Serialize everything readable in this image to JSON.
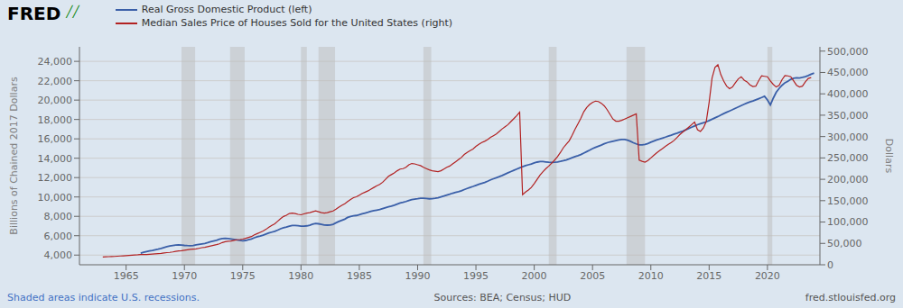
{
  "chart_data": {
    "type": "line",
    "annotations": [
      "FRED",
      "╱╱",
      "Shaded areas indicate U.S. recessions.",
      "Sources: BEA; Census; HUD",
      "fred.stlouisfed.org"
    ],
    "ylabel": "Billions of Chained 2017 Dollars",
    "y2label": "Dollars",
    "xlim": [
      1961,
      2024.5
    ],
    "xticks": [
      1965,
      1970,
      1975,
      1980,
      1985,
      1990,
      1995,
      2000,
      2005,
      2010,
      2015,
      2020
    ],
    "ylim": [
      3000,
      25500
    ],
    "yticks": [
      {
        "value": 4000,
        "label": "4,000"
      },
      {
        "value": 6000,
        "label": "6,000"
      },
      {
        "value": 8000,
        "label": "8,000"
      },
      {
        "value": 10000,
        "label": "10,000"
      },
      {
        "value": 12000,
        "label": "12,000"
      },
      {
        "value": 14000,
        "label": "14,000"
      },
      {
        "value": 16000,
        "label": "16,000"
      },
      {
        "value": 18000,
        "label": "18,000"
      },
      {
        "value": 20000,
        "label": "20,000"
      },
      {
        "value": 22000,
        "label": "22,000"
      },
      {
        "value": 24000,
        "label": "24,000"
      }
    ],
    "y2lim": [
      0,
      510000
    ],
    "y2ticks": [
      0,
      {
        "value": 50000,
        "label": "50,000"
      },
      {
        "value": 100000,
        "label": "100,000"
      },
      {
        "value": 150000,
        "label": "150,000"
      },
      {
        "value": 200000,
        "label": "200,000"
      },
      {
        "value": 250000,
        "label": "250,000"
      },
      {
        "value": 300000,
        "label": "300,000"
      },
      {
        "value": 350000,
        "label": "350,000"
      },
      {
        "value": 400000,
        "label": "400,000"
      },
      {
        "value": 450000,
        "label": "450,000"
      },
      {
        "value": 500000,
        "label": "500,000"
      }
    ],
    "grid": true,
    "legend": "upper left",
    "recessions": [
      [
        1969.75,
        1970.917
      ],
      [
        1973.917,
        1975.167
      ],
      [
        1980.0,
        1980.5
      ],
      [
        1981.5,
        1982.917
      ],
      [
        1990.5,
        1991.167
      ],
      [
        2001.25,
        2001.917
      ],
      [
        2007.917,
        2009.5
      ],
      [
        2020.0,
        2020.417
      ]
    ],
    "series": [
      {
        "name": "Real Gross Domestic Product (left)",
        "color": "#3a5fa8",
        "axis": "y",
        "x": [
          1966.25,
          1966.5,
          1966.75,
          1967.0,
          1967.25,
          1967.5,
          1967.75,
          1968.0,
          1968.25,
          1968.5,
          1968.75,
          1969.0,
          1969.25,
          1969.5,
          1969.75,
          1970.0,
          1970.25,
          1970.5,
          1970.75,
          1971.0,
          1971.25,
          1971.5,
          1971.75,
          1972.0,
          1972.25,
          1972.5,
          1972.75,
          1973.0,
          1973.25,
          1973.5,
          1973.75,
          1974.0,
          1974.25,
          1974.5,
          1974.75,
          1975.0,
          1975.25,
          1975.5,
          1975.75,
          1976.0,
          1976.25,
          1976.5,
          1976.75,
          1977.0,
          1977.25,
          1977.5,
          1977.75,
          1978.0,
          1978.25,
          1978.5,
          1978.75,
          1979.0,
          1979.25,
          1979.5,
          1979.75,
          1980.0,
          1980.25,
          1980.5,
          1980.75,
          1981.0,
          1981.25,
          1981.5,
          1981.75,
          1982.0,
          1982.25,
          1982.5,
          1982.75,
          1983.0,
          1983.25,
          1983.5,
          1983.75,
          1984.0,
          1984.25,
          1984.5,
          1984.75,
          1985.0,
          1985.25,
          1985.5,
          1985.75,
          1986.0,
          1986.25,
          1986.5,
          1986.75,
          1987.0,
          1987.25,
          1987.5,
          1987.75,
          1988.0,
          1988.25,
          1988.5,
          1988.75,
          1989.0,
          1989.25,
          1989.5,
          1989.75,
          1990.0,
          1990.25,
          1990.5,
          1990.75,
          1991.0,
          1991.25,
          1991.5,
          1991.75,
          1992.0,
          1992.25,
          1992.5,
          1992.75,
          1993.0,
          1993.25,
          1993.5,
          1993.75,
          1994.0,
          1994.25,
          1994.5,
          1994.75,
          1995.0,
          1995.25,
          1995.5,
          1995.75,
          1996.0,
          1996.25,
          1996.5,
          1996.75,
          1997.0,
          1997.25,
          1997.5,
          1997.75,
          1998.0,
          1998.25,
          1998.5,
          1998.75,
          1999.0,
          1999.25,
          1999.5,
          1999.75,
          2000.0,
          2000.25,
          2000.5,
          2000.75,
          2001.0,
          2001.25,
          2001.5,
          2001.75,
          2002.0,
          2002.25,
          2002.5,
          2002.75,
          2003.0,
          2003.25,
          2003.5,
          2003.75,
          2004.0,
          2004.25,
          2004.5,
          2004.75,
          2005.0,
          2005.25,
          2005.5,
          2005.75,
          2006.0,
          2006.25,
          2006.5,
          2006.75,
          2007.0,
          2007.25,
          2007.5,
          2007.75,
          2008.0,
          2008.25,
          2008.5,
          2008.75,
          2009.0,
          2009.25,
          2009.5,
          2009.75,
          2010.0,
          2010.25,
          2010.5,
          2010.75,
          2011.0,
          2011.25,
          2011.5,
          2011.75,
          2012.0,
          2012.25,
          2012.5,
          2012.75,
          2013.0,
          2013.25,
          2013.5,
          2013.75,
          2014.0,
          2014.25,
          2014.5,
          2014.75,
          2015.0,
          2015.25,
          2015.5,
          2015.75,
          2016.0,
          2016.25,
          2016.5,
          2016.75,
          2017.0,
          2017.25,
          2017.5,
          2017.75,
          2018.0,
          2018.25,
          2018.5,
          2018.75,
          2019.0,
          2019.25,
          2019.5,
          2019.75,
          2020.0,
          2020.25,
          2020.5,
          2020.75,
          2021.0,
          2021.25,
          2021.5,
          2021.75,
          2022.0,
          2022.25,
          2022.5,
          2022.75,
          2023.0,
          2023.25,
          2023.5,
          2023.75,
          2024.0
        ],
        "values": [
          4200,
          4290,
          4360,
          4420,
          4480,
          4550,
          4610,
          4690,
          4780,
          4860,
          4930,
          4990,
          5030,
          5060,
          5040,
          5000,
          4980,
          4970,
          4990,
          5050,
          5100,
          5150,
          5190,
          5280,
          5380,
          5450,
          5520,
          5630,
          5700,
          5720,
          5700,
          5660,
          5620,
          5570,
          5530,
          5480,
          5510,
          5590,
          5670,
          5790,
          5890,
          5970,
          6060,
          6180,
          6280,
          6370,
          6460,
          6580,
          6720,
          6820,
          6890,
          6980,
          7050,
          7060,
          7040,
          6980,
          6980,
          7020,
          7090,
          7190,
          7270,
          7230,
          7180,
          7100,
          7090,
          7110,
          7180,
          7330,
          7470,
          7590,
          7710,
          7890,
          7990,
          8050,
          8090,
          8170,
          8260,
          8340,
          8420,
          8510,
          8580,
          8640,
          8700,
          8800,
          8890,
          8980,
          9050,
          9150,
          9270,
          9370,
          9440,
          9530,
          9640,
          9720,
          9780,
          9820,
          9870,
          9870,
          9840,
          9810,
          9820,
          9860,
          9920,
          10010,
          10100,
          10200,
          10290,
          10390,
          10470,
          10550,
          10640,
          10760,
          10880,
          10990,
          11090,
          11200,
          11310,
          11400,
          11490,
          11620,
          11760,
          11880,
          11990,
          12100,
          12220,
          12360,
          12490,
          12620,
          12750,
          12880,
          13000,
          13130,
          13230,
          13320,
          13410,
          13510,
          13600,
          13650,
          13650,
          13620,
          13590,
          13570,
          13580,
          13620,
          13680,
          13750,
          13830,
          13930,
          14050,
          14160,
          14260,
          14380,
          14530,
          14680,
          14830,
          14990,
          15120,
          15240,
          15360,
          15490,
          15600,
          15690,
          15760,
          15830,
          15890,
          15930,
          15940,
          15870,
          15750,
          15600,
          15480,
          15380,
          15370,
          15420,
          15520,
          15660,
          15780,
          15890,
          15980,
          16080,
          16180,
          16290,
          16380,
          16490,
          16590,
          16700,
          16800,
          16940,
          17070,
          17200,
          17330,
          17460,
          17560,
          17660,
          17760,
          17890,
          18030,
          18170,
          18300,
          18460,
          18610,
          18750,
          18880,
          19010,
          19150,
          19290,
          19430,
          19570,
          19700,
          19820,
          19910,
          20030,
          20150,
          20270,
          20400,
          20010,
          19500,
          20200,
          20800,
          21200,
          21530,
          21790,
          21950,
          22150,
          22260,
          22300,
          22280,
          22340,
          22420,
          22540,
          22680,
          22800
        ]
      },
      {
        "name": "Median Sales Price of Houses Sold for the United States (right)",
        "color": "#b22222",
        "axis": "y2",
        "x": [
          1963.0,
          1963.25,
          1963.5,
          1963.75,
          1964.0,
          1964.25,
          1964.5,
          1964.75,
          1965.0,
          1965.25,
          1965.5,
          1965.75,
          1966.0,
          1966.25,
          1966.5,
          1966.75,
          1967.0,
          1967.25,
          1967.5,
          1967.75,
          1968.0,
          1968.25,
          1968.5,
          1968.75,
          1969.0,
          1969.25,
          1969.5,
          1969.75,
          1970.0,
          1970.25,
          1970.5,
          1970.75,
          1971.0,
          1971.25,
          1971.5,
          1971.75,
          1972.0,
          1972.25,
          1972.5,
          1972.75,
          1973.0,
          1973.25,
          1973.5,
          1973.75,
          1974.0,
          1974.25,
          1974.5,
          1974.75,
          1975.0,
          1975.25,
          1975.5,
          1975.75,
          1976.0,
          1976.25,
          1976.5,
          1976.75,
          1977.0,
          1977.25,
          1977.5,
          1977.75,
          1978.0,
          1978.25,
          1978.5,
          1978.75,
          1979.0,
          1979.25,
          1979.5,
          1979.75,
          1980.0,
          1980.25,
          1980.5,
          1980.75,
          1981.0,
          1981.25,
          1981.5,
          1981.75,
          1982.0,
          1982.25,
          1982.5,
          1982.75,
          1983.0,
          1983.25,
          1983.5,
          1983.75,
          1984.0,
          1984.25,
          1984.5,
          1984.75,
          1985.0,
          1985.25,
          1985.5,
          1985.75,
          1986.0,
          1986.25,
          1986.5,
          1986.75,
          1987.0,
          1987.25,
          1987.5,
          1987.75,
          1988.0,
          1988.25,
          1988.5,
          1988.75,
          1989.0,
          1989.25,
          1989.5,
          1989.75,
          1990.0,
          1990.25,
          1990.5,
          1990.75,
          1991.0,
          1991.25,
          1991.5,
          1991.75,
          1992.0,
          1992.25,
          1992.5,
          1992.75,
          1993.0,
          1993.25,
          1993.5,
          1993.75,
          1994.0,
          1994.25,
          1994.5,
          1994.75,
          1995.0,
          1995.25,
          1995.5,
          1995.75,
          1996.0,
          1996.25,
          1996.5,
          1996.75,
          1997.0,
          1997.25,
          1997.5,
          1997.75,
          1998.0,
          1998.25,
          1998.5,
          1998.75,
          1999.0,
          1999.25,
          1999.5,
          1999.75,
          2000.0,
          2000.25,
          2000.5,
          2000.75,
          2001.0,
          2001.25,
          2001.5,
          2001.75,
          2002.0,
          2002.25,
          2002.5,
          2002.75,
          2003.0,
          2003.25,
          2003.5,
          2003.75,
          2004.0,
          2004.25,
          2004.5,
          2004.75,
          2005.0,
          2005.25,
          2005.5,
          2005.75,
          2006.0,
          2006.25,
          2006.5,
          2006.75,
          2007.0,
          2007.25,
          2007.5,
          2007.75,
          2008.0,
          2008.25,
          2008.5,
          2008.75,
          2009.0,
          2009.25,
          2009.5,
          2009.75,
          2010.0,
          2010.25,
          2010.5,
          2010.75,
          2011.0,
          2011.25,
          2011.5,
          2011.75,
          2012.0,
          2012.25,
          2012.5,
          2012.75,
          2013.0,
          2013.25,
          2013.5,
          2013.75,
          2014.0,
          2014.25,
          2014.5,
          2014.75,
          2015.0,
          2015.25,
          2015.5,
          2015.75,
          2016.0,
          2016.25,
          2016.5,
          2016.75,
          2017.0,
          2017.25,
          2017.5,
          2017.75,
          2018.0,
          2018.25,
          2018.5,
          2018.75,
          2019.0,
          2019.25,
          2019.5,
          2019.75,
          2020.0,
          2020.25,
          2020.5,
          2020.75,
          2021.0,
          2021.25,
          2021.5,
          2021.75,
          2022.0,
          2022.25,
          2022.5,
          2022.75,
          2023.0,
          2023.25,
          2023.5,
          2023.75
        ],
        "values": [
          18000,
          18500,
          19000,
          19200,
          19500,
          20000,
          20500,
          21000,
          21500,
          22000,
          22500,
          23000,
          23300,
          23800,
          24000,
          24100,
          24500,
          25000,
          25500,
          26000,
          26500,
          27500,
          28500,
          29000,
          30000,
          31500,
          32500,
          33000,
          34000,
          35000,
          36000,
          36500,
          37000,
          38500,
          40000,
          41000,
          42500,
          44000,
          45500,
          47000,
          49000,
          52000,
          54000,
          55000,
          55500,
          57000,
          58500,
          59000,
          60000,
          62000,
          64000,
          66000,
          70000,
          73000,
          76000,
          79000,
          83000,
          88000,
          92000,
          96000,
          102000,
          108000,
          113000,
          116000,
          120000,
          121000,
          120000,
          118000,
          117000,
          119000,
          121000,
          122000,
          124000,
          126000,
          124000,
          122000,
          121000,
          122000,
          124000,
          126000,
          130000,
          135000,
          139000,
          143000,
          148000,
          153000,
          157000,
          159000,
          163000,
          167000,
          170000,
          173000,
          177000,
          181000,
          185000,
          188000,
          193000,
          200000,
          207000,
          211000,
          215000,
          220000,
          224000,
          225000,
          228000,
          234000,
          237000,
          236000,
          234000,
          232000,
          228000,
          225000,
          222000,
          220000,
          219000,
          218000,
          220000,
          224000,
          228000,
          231000,
          236000,
          241000,
          246000,
          251000,
          258000,
          263000,
          267000,
          271000,
          277000,
          282000,
          286000,
          289000,
          293000,
          298000,
          302000,
          306000,
          312000,
          318000,
          323000,
          328000,
          335000,
          342000,
          349000,
          357000,
          164000,
          170000,
          175000,
          181000,
          190000,
          200000,
          210000,
          218000,
          225000,
          231000,
          238000,
          245000,
          253000,
          263000,
          274000,
          282000,
          290000,
          303000,
          317000,
          330000,
          343000,
          358000,
          368000,
          375000,
          380000,
          383000,
          382000,
          378000,
          372000,
          363000,
          352000,
          341000,
          336000,
          336000,
          338000,
          341000,
          344000,
          347000,
          350000,
          353000,
          245000,
          242000,
          240000,
          244000,
          250000,
          256000,
          262000,
          267000,
          272000,
          277000,
          282000,
          286000,
          291000,
          298000,
          305000,
          311000,
          316000,
          322000,
          328000,
          334000,
          316000,
          312000,
          320000,
          335000,
          380000,
          437000,
          462000,
          468000,
          445000,
          430000,
          418000,
          412000,
          416000,
          426000,
          435000,
          440000,
          432000,
          428000,
          421000,
          417000,
          418000,
          431000,
          442000,
          441000,
          440000,
          430000,
          422000,
          416000,
          420000,
          433000,
          443000,
          442000,
          440000,
          430000,
          420000,
          416000,
          418000,
          428000,
          436000,
          438000
        ]
      }
    ]
  }
}
